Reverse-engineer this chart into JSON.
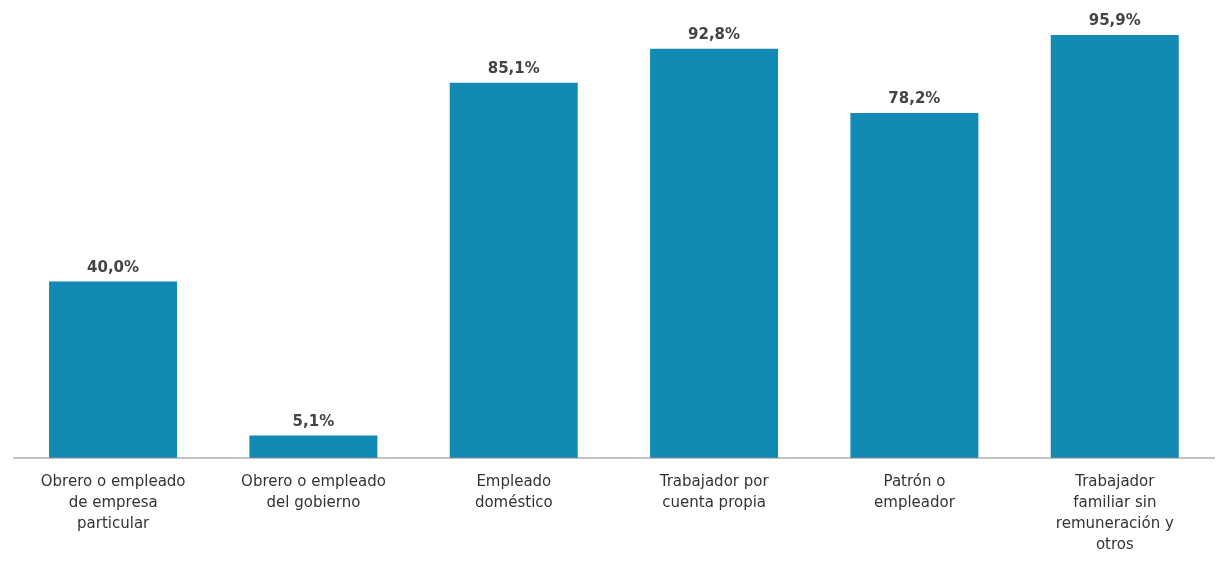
{
  "chart_data": {
    "type": "bar",
    "categories": [
      "Obrero o empleado de empresa particular",
      "Obrero o empleado del gobierno",
      "Empleado doméstico",
      "Trabajador por cuenta propia",
      "Patrón o empleador",
      "Trabajador familiar sin remuneración y otros"
    ],
    "values": [
      40.0,
      5.1,
      85.1,
      92.8,
      78.2,
      95.9
    ],
    "color": "#128ab4",
    "value_labels": [
      "40,0%",
      "5,1%",
      "85,1%",
      "92,8%",
      "78,2%",
      "95,9%"
    ],
    "grid": false,
    "legend": false
  }
}
